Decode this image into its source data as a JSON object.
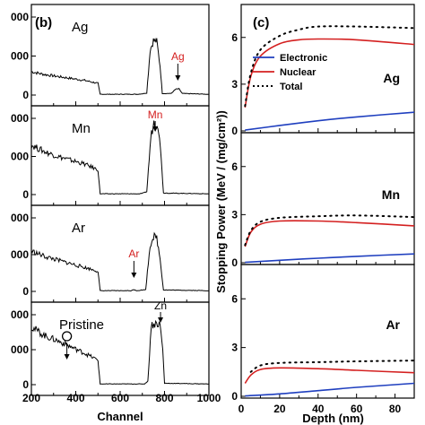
{
  "chart_data": [
    {
      "type": "line",
      "panel_label": "(b)",
      "xlabel": "Channel",
      "xlim": [
        200,
        1000
      ],
      "xticks": [
        "200",
        "400",
        "600",
        "800",
        "1000"
      ],
      "panels": [
        {
          "name": "Ag",
          "ytick_labels": [
            "0",
            "000",
            "000"
          ],
          "annotations": [
            {
              "text": "Ag",
              "x": 860,
              "color": "#d42020"
            }
          ],
          "series": [
            {
              "points": [
                [
                  200,
                  120
                ],
                [
                  260,
                  105
                ],
                [
                  320,
                  95
                ],
                [
                  380,
                  85
                ],
                [
                  440,
                  75
                ],
                [
                  500,
                  60
                ],
                [
                  510,
                  4
                ],
                [
                  680,
                  4
                ],
                [
                  720,
                  10
                ],
                [
                  735,
                  230
                ],
                [
                  750,
                  280
                ],
                [
                  765,
                  275
                ],
                [
                  780,
                  150
                ],
                [
                  790,
                  8
                ],
                [
                  830,
                  8
                ],
                [
                  850,
                  30
                ],
                [
                  865,
                  32
                ],
                [
                  880,
                  8
                ],
                [
                  1000,
                  4
                ]
              ]
            }
          ]
        },
        {
          "name": "Mn",
          "ytick_labels": [
            "0",
            "000",
            "000"
          ],
          "annotations": [
            {
              "text": "Mn",
              "x": 758,
              "color": "#d42020"
            }
          ],
          "series": [
            {
              "points": [
                [
                  200,
                  260
                ],
                [
                  260,
                  225
                ],
                [
                  320,
                  200
                ],
                [
                  380,
                  180
                ],
                [
                  440,
                  160
                ],
                [
                  500,
                  130
                ],
                [
                  510,
                  4
                ],
                [
                  690,
                  4
                ],
                [
                  720,
                  15
                ],
                [
                  738,
                  300
                ],
                [
                  752,
                  380
                ],
                [
                  770,
                  370
                ],
                [
                  785,
                  200
                ],
                [
                  795,
                  8
                ],
                [
                  1000,
                  4
                ]
              ]
            }
          ]
        },
        {
          "name": "Ar",
          "ytick_labels": [
            "0",
            "000",
            "000"
          ],
          "annotations": [
            {
              "text": "Ar",
              "x": 662,
              "color": "#d42020"
            }
          ],
          "series": [
            {
              "points": [
                [
                  200,
                  220
                ],
                [
                  260,
                  190
                ],
                [
                  320,
                  170
                ],
                [
                  380,
                  150
                ],
                [
                  440,
                  130
                ],
                [
                  500,
                  110
                ],
                [
                  510,
                  4
                ],
                [
                  650,
                  4
                ],
                [
                  662,
                  10
                ],
                [
                  675,
                  4
                ],
                [
                  715,
                  10
                ],
                [
                  735,
                  250
                ],
                [
                  750,
                  300
                ],
                [
                  765,
                  290
                ],
                [
                  780,
                  180
                ],
                [
                  795,
                  8
                ],
                [
                  1000,
                  4
                ]
              ]
            }
          ]
        },
        {
          "name": "Pristine",
          "ytick_labels": [
            "0",
            "000",
            "000"
          ],
          "annotations": [
            {
              "text": "Zn",
              "x": 782,
              "color": "#000000"
            },
            {
              "text": "O",
              "x": 360,
              "color": "#000000"
            }
          ],
          "series": [
            {
              "points": [
                [
                  200,
                  330
                ],
                [
                  260,
                  280
                ],
                [
                  320,
                  250
                ],
                [
                  380,
                  215
                ],
                [
                  440,
                  180
                ],
                [
                  500,
                  140
                ],
                [
                  510,
                  4
                ],
                [
                  710,
                  4
                ],
                [
                  725,
                  20
                ],
                [
                  740,
                  340
                ],
                [
                  760,
                  350
                ],
                [
                  780,
                  345
                ],
                [
                  792,
                  200
                ],
                [
                  800,
                  8
                ],
                [
                  1000,
                  4
                ]
              ]
            }
          ]
        }
      ]
    },
    {
      "type": "line",
      "panel_label": "(c)",
      "xlabel": "Depth (nm)",
      "ylabel": "Stopping Power (MeV / (mg/cm²))",
      "xlim": [
        0,
        90
      ],
      "ylim": [
        0,
        8
      ],
      "xticks": [
        "0",
        "20",
        "40",
        "60",
        "80"
      ],
      "yticks": [
        "0",
        "3",
        "6"
      ],
      "legend": {
        "placement": "top-left",
        "entries": [
          {
            "name": "Electronic",
            "color": "#1f3fbf",
            "style": "solid"
          },
          {
            "name": "Nuclear",
            "color": "#d42020",
            "style": "solid"
          },
          {
            "name": "Total",
            "color": "#000000",
            "style": "dotted"
          }
        ]
      },
      "panels": [
        {
          "name": "Ag",
          "series": [
            {
              "name": "Electronic",
              "points": [
                [
                  2,
                  0.05
                ],
                [
                  20,
                  0.35
                ],
                [
                  40,
                  0.65
                ],
                [
                  60,
                  0.9
                ],
                [
                  90,
                  1.2
                ]
              ]
            },
            {
              "name": "Nuclear",
              "points": [
                [
                  2,
                  1.5
                ],
                [
                  5,
                  3.5
                ],
                [
                  10,
                  4.8
                ],
                [
                  20,
                  5.6
                ],
                [
                  30,
                  5.85
                ],
                [
                  40,
                  5.9
                ],
                [
                  60,
                  5.85
                ],
                [
                  90,
                  5.55
                ]
              ]
            },
            {
              "name": "Total",
              "points": [
                [
                  2,
                  1.6
                ],
                [
                  5,
                  3.7
                ],
                [
                  10,
                  5.2
                ],
                [
                  20,
                  6.1
                ],
                [
                  30,
                  6.5
                ],
                [
                  40,
                  6.7
                ],
                [
                  60,
                  6.7
                ],
                [
                  90,
                  6.6
                ]
              ]
            }
          ]
        },
        {
          "name": "Mn",
          "series": [
            {
              "name": "Electronic",
              "points": [
                [
                  2,
                  0.02
                ],
                [
                  20,
                  0.15
                ],
                [
                  40,
                  0.28
                ],
                [
                  60,
                  0.4
                ],
                [
                  90,
                  0.55
                ]
              ]
            },
            {
              "name": "Nuclear",
              "points": [
                [
                  2,
                  1.0
                ],
                [
                  5,
                  1.9
                ],
                [
                  10,
                  2.4
                ],
                [
                  20,
                  2.6
                ],
                [
                  40,
                  2.6
                ],
                [
                  60,
                  2.5
                ],
                [
                  90,
                  2.3
                ]
              ]
            },
            {
              "name": "Total",
              "points": [
                [
                  2,
                  1.1
                ],
                [
                  5,
                  2.0
                ],
                [
                  10,
                  2.55
                ],
                [
                  20,
                  2.8
                ],
                [
                  40,
                  2.9
                ],
                [
                  60,
                  2.95
                ],
                [
                  90,
                  2.85
                ]
              ]
            }
          ]
        },
        {
          "name": "Ar",
          "series": [
            {
              "name": "Electronic",
              "points": [
                [
                  2,
                  0.02
                ],
                [
                  20,
                  0.15
                ],
                [
                  40,
                  0.35
                ],
                [
                  60,
                  0.55
                ],
                [
                  90,
                  0.8
                ]
              ]
            },
            {
              "name": "Nuclear",
              "points": [
                [
                  2,
                  0.8
                ],
                [
                  5,
                  1.3
                ],
                [
                  10,
                  1.65
                ],
                [
                  20,
                  1.75
                ],
                [
                  40,
                  1.7
                ],
                [
                  60,
                  1.6
                ],
                [
                  90,
                  1.45
                ]
              ]
            },
            {
              "name": "Total",
              "points": [
                [
                  5,
                  1.5
                ],
                [
                  10,
                  1.9
                ],
                [
                  20,
                  2.05
                ],
                [
                  40,
                  2.1
                ],
                [
                  60,
                  2.15
                ],
                [
                  90,
                  2.2
                ]
              ]
            }
          ]
        }
      ]
    }
  ]
}
